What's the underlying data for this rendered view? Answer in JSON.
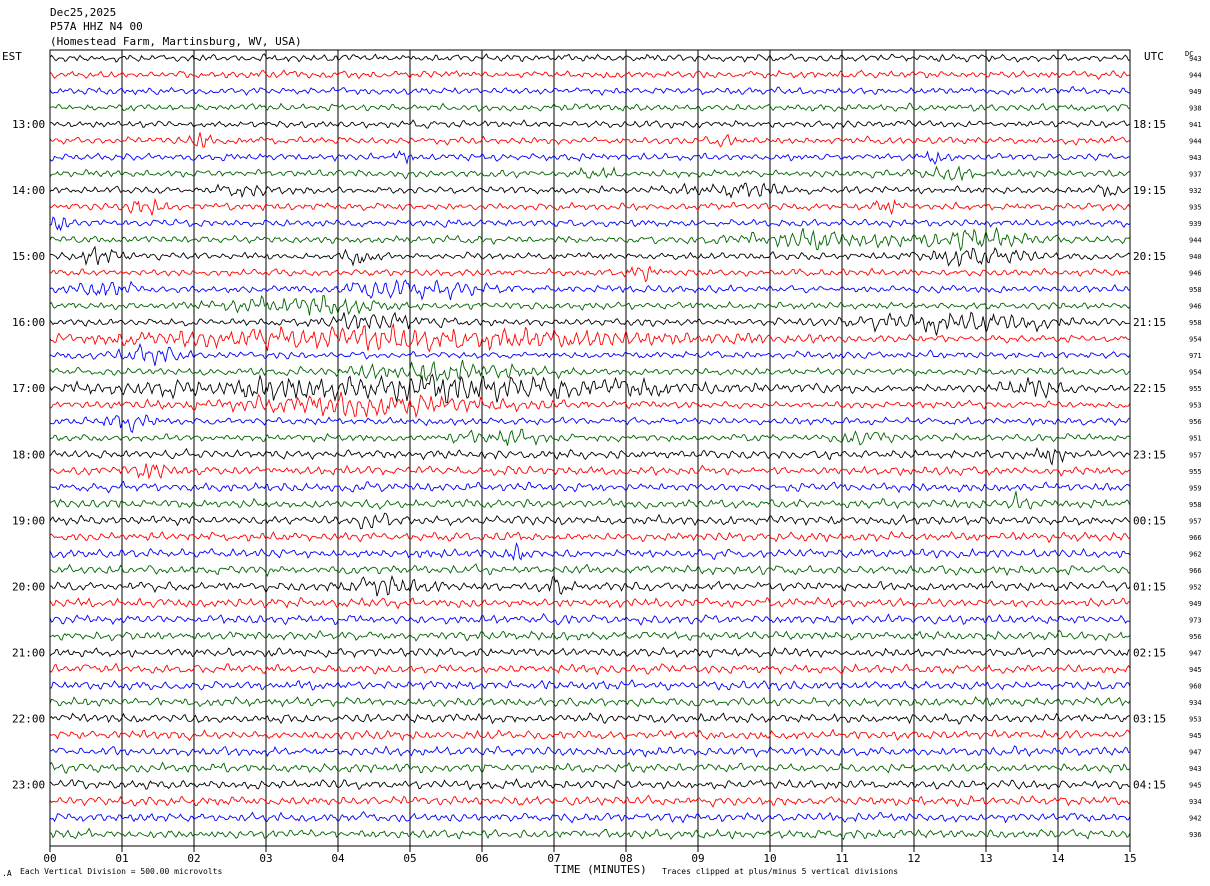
{
  "header": {
    "date": "Dec25,2025",
    "station": "P57A HHZ N4 00",
    "location": "(Homestead Farm, Martinsburg, WV, USA)"
  },
  "left_axis_title": "EST",
  "right_axis_title": "UTC",
  "dc_title": "DC",
  "footer": {
    "scale_note": "Each Vertical Division =  500.00 microvolts",
    "xlabel": "TIME (MINUTES)",
    "clip_note": "Traces clipped at plus/minus 5 vertical divisions"
  },
  "chart_data": {
    "type": "line",
    "subtype": "helicorder",
    "x_ticks": [
      "00",
      "01",
      "02",
      "03",
      "04",
      "05",
      "06",
      "07",
      "08",
      "09",
      "10",
      "11",
      "12",
      "13",
      "14",
      "15"
    ],
    "xlim": [
      0,
      15
    ],
    "trace_count": 48,
    "trace_minutes": 15,
    "grid": "vertical lines each minute",
    "colors": [
      "#000000",
      "#ff0000",
      "#0000ff",
      "#006400"
    ],
    "left_time_labels": [
      {
        "row": 4,
        "text": "13:00"
      },
      {
        "row": 8,
        "text": "14:00"
      },
      {
        "row": 12,
        "text": "15:00"
      },
      {
        "row": 16,
        "text": "16:00"
      },
      {
        "row": 20,
        "text": "17:00"
      },
      {
        "row": 24,
        "text": "18:00"
      },
      {
        "row": 28,
        "text": "19:00"
      },
      {
        "row": 32,
        "text": "20:00"
      },
      {
        "row": 36,
        "text": "21:00"
      },
      {
        "row": 40,
        "text": "22:00"
      },
      {
        "row": 44,
        "text": "23:00"
      }
    ],
    "right_time_labels": [
      {
        "row": 4,
        "text": "18:15"
      },
      {
        "row": 8,
        "text": "19:15"
      },
      {
        "row": 12,
        "text": "20:15"
      },
      {
        "row": 16,
        "text": "21:15"
      },
      {
        "row": 20,
        "text": "22:15"
      },
      {
        "row": 24,
        "text": "23:15"
      },
      {
        "row": 28,
        "text": "00:15"
      },
      {
        "row": 32,
        "text": "01:15"
      },
      {
        "row": 36,
        "text": "02:15"
      },
      {
        "row": 40,
        "text": "03:15"
      },
      {
        "row": 44,
        "text": "04:15"
      }
    ],
    "dc_offsets": [
      "943",
      "944",
      "949",
      "938",
      "941",
      "944",
      "943",
      "937",
      "932",
      "935",
      "939",
      "944",
      "940",
      "946",
      "958",
      "946",
      "958",
      "954",
      "971",
      "954",
      "955",
      "953",
      "956",
      "951",
      "957",
      "955",
      "959",
      "958",
      "957",
      "966",
      "962",
      "966",
      "952",
      "949",
      "973",
      "956",
      "947",
      "945",
      "960",
      "934",
      "953",
      "945",
      "947",
      "943",
      "945",
      "934",
      "942",
      "936"
    ],
    "burst_events": [
      {
        "row": 5,
        "center_min": 2.1,
        "width_min": 0.3,
        "amp": 1.6
      },
      {
        "row": 5,
        "center_min": 9.4,
        "width_min": 0.3,
        "amp": 1.5
      },
      {
        "row": 6,
        "center_min": 4.9,
        "width_min": 0.3,
        "amp": 1.6
      },
      {
        "row": 6,
        "center_min": 12.3,
        "width_min": 0.3,
        "amp": 1.6
      },
      {
        "row": 7,
        "center_min": 7.6,
        "width_min": 0.5,
        "amp": 1.4
      },
      {
        "row": 7,
        "center_min": 12.5,
        "width_min": 0.6,
        "amp": 1.5
      },
      {
        "row": 8,
        "center_min": 2.7,
        "width_min": 0.6,
        "amp": 1.8
      },
      {
        "row": 8,
        "center_min": 9.5,
        "width_min": 1.2,
        "amp": 1.7
      },
      {
        "row": 8,
        "center_min": 14.7,
        "width_min": 0.3,
        "amp": 1.8
      },
      {
        "row": 9,
        "center_min": 1.3,
        "width_min": 0.5,
        "amp": 2.0
      },
      {
        "row": 9,
        "center_min": 11.6,
        "width_min": 0.4,
        "amp": 1.8
      },
      {
        "row": 10,
        "center_min": 0.1,
        "width_min": 0.3,
        "amp": 1.8
      },
      {
        "row": 11,
        "center_min": 10.7,
        "width_min": 2.0,
        "amp": 1.8
      },
      {
        "row": 11,
        "center_min": 12.8,
        "width_min": 1.6,
        "amp": 2.0
      },
      {
        "row": 12,
        "center_min": 0.6,
        "width_min": 0.6,
        "amp": 2.2
      },
      {
        "row": 12,
        "center_min": 4.3,
        "width_min": 0.5,
        "amp": 1.9
      },
      {
        "row": 12,
        "center_min": 12.9,
        "width_min": 1.4,
        "amp": 2.0
      },
      {
        "row": 13,
        "center_min": 8.2,
        "width_min": 0.4,
        "amp": 1.8
      },
      {
        "row": 14,
        "center_min": 0.8,
        "width_min": 0.8,
        "amp": 2.0
      },
      {
        "row": 14,
        "center_min": 5.0,
        "width_min": 1.8,
        "amp": 2.0
      },
      {
        "row": 15,
        "center_min": 3.5,
        "width_min": 2.0,
        "amp": 2.2
      },
      {
        "row": 16,
        "center_min": 4.6,
        "width_min": 1.4,
        "amp": 2.0
      },
      {
        "row": 16,
        "center_min": 12.6,
        "width_min": 2.6,
        "amp": 2.2
      },
      {
        "row": 17,
        "center_min": 4.8,
        "width_min": 8.0,
        "amp": 2.4
      },
      {
        "row": 18,
        "center_min": 1.4,
        "width_min": 0.8,
        "amp": 1.9
      },
      {
        "row": 19,
        "center_min": 5.4,
        "width_min": 2.6,
        "amp": 2.0
      },
      {
        "row": 20,
        "center_min": 5.0,
        "width_min": 8.0,
        "amp": 2.6
      },
      {
        "row": 20,
        "center_min": 13.6,
        "width_min": 1.0,
        "amp": 1.9
      },
      {
        "row": 21,
        "center_min": 4.3,
        "width_min": 4.0,
        "amp": 2.3
      },
      {
        "row": 22,
        "center_min": 1.0,
        "width_min": 0.8,
        "amp": 1.6
      },
      {
        "row": 23,
        "center_min": 6.2,
        "width_min": 1.2,
        "amp": 1.7
      },
      {
        "row": 23,
        "center_min": 11.3,
        "width_min": 0.6,
        "amp": 1.6
      },
      {
        "row": 24,
        "center_min": 13.9,
        "width_min": 0.5,
        "amp": 1.5
      },
      {
        "row": 25,
        "center_min": 1.4,
        "width_min": 0.5,
        "amp": 2.0
      },
      {
        "row": 27,
        "center_min": 13.4,
        "width_min": 0.3,
        "amp": 1.8
      },
      {
        "row": 28,
        "center_min": 4.5,
        "width_min": 0.5,
        "amp": 1.8
      },
      {
        "row": 30,
        "center_min": 6.5,
        "width_min": 0.3,
        "amp": 1.9
      },
      {
        "row": 32,
        "center_min": 4.7,
        "width_min": 1.0,
        "amp": 1.6
      },
      {
        "row": 32,
        "center_min": 7.0,
        "width_min": 0.3,
        "amp": 1.8
      }
    ]
  }
}
